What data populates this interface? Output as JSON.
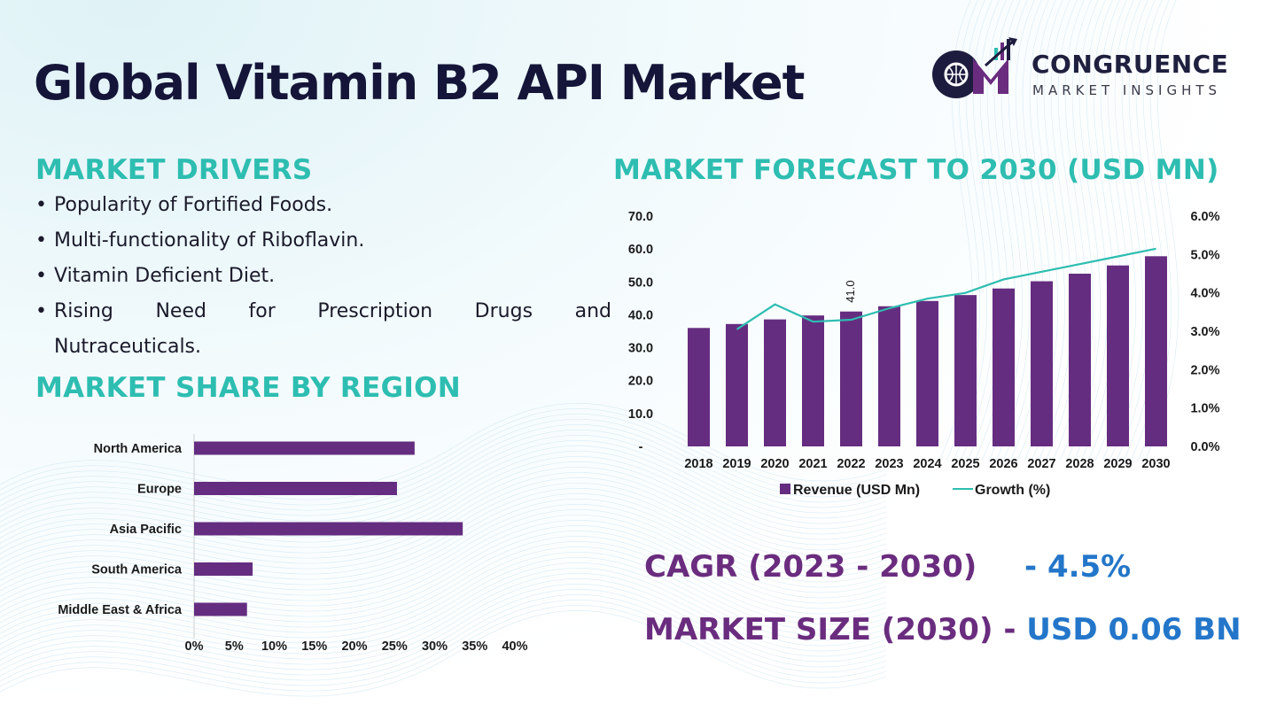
{
  "title": "Global Vitamin B2 API Market",
  "logo": {
    "line1": "CONGRUENCE",
    "line2": "MARKET INSIGHTS"
  },
  "drivers": {
    "heading": "MARKET DRIVERS",
    "items": [
      "Popularity of Fortified Foods.",
      "Multi-functionality of Riboflavin.",
      "Vitamin Deficient Diet.",
      "Rising Need for Prescription Drugs and",
      "Nutraceuticals."
    ]
  },
  "region": {
    "heading": "MARKET SHARE BY REGION"
  },
  "forecast": {
    "heading": "MARKET FORECAST TO 2030 (USD MN)"
  },
  "kpis": {
    "cagr_label": "CAGR (2023 - 2030)",
    "cagr_value": "- 4.5%",
    "size_label": "MARKET SIZE (2030) -",
    "size_value": "USD 0.06 BN"
  },
  "colors": {
    "purple": "#652d80",
    "teal": "#2ebdb1",
    "navy": "#141538",
    "blue": "#2376c9"
  },
  "chart_data": [
    {
      "type": "bar",
      "orientation": "horizontal",
      "title": "MARKET SHARE BY REGION",
      "categories": [
        "North America",
        "Europe",
        "Asia Pacific",
        "South America",
        "Middle East & Africa"
      ],
      "values": [
        27.5,
        25.3,
        33.5,
        7.3,
        6.6
      ],
      "xlim": [
        0,
        40
      ],
      "xticks": [
        "0%",
        "5%",
        "10%",
        "15%",
        "20%",
        "25%",
        "30%",
        "35%",
        "40%"
      ],
      "legend": "none"
    },
    {
      "type": "bar+line",
      "title": "MARKET FORECAST TO 2030 (USD MN)",
      "categories": [
        "2018",
        "2019",
        "2020",
        "2021",
        "2022",
        "2023",
        "2024",
        "2025",
        "2026",
        "2027",
        "2028",
        "2029",
        "2030"
      ],
      "series": [
        {
          "name": "Revenue (USD Mn)",
          "type": "bar",
          "axis": "left",
          "values": [
            36.0,
            37.2,
            38.6,
            39.8,
            41.0,
            42.6,
            44.2,
            46.0,
            48.0,
            50.2,
            52.5,
            55.0,
            57.8
          ]
        },
        {
          "name": "Growth (%)",
          "type": "line",
          "axis": "right",
          "values": [
            null,
            3.05,
            3.7,
            3.25,
            3.3,
            3.6,
            3.85,
            4.0,
            4.35,
            4.55,
            4.75,
            4.95,
            5.15
          ]
        }
      ],
      "data_labels": [
        {
          "category": "2022",
          "text": "41.0"
        }
      ],
      "yticks_left": [
        "-",
        "10.0",
        "20.0",
        "30.0",
        "40.0",
        "50.0",
        "60.0",
        "70.0"
      ],
      "ylim_left": [
        0,
        70
      ],
      "yticks_right": [
        "0.0%",
        "1.0%",
        "2.0%",
        "3.0%",
        "4.0%",
        "5.0%",
        "6.0%"
      ],
      "ylim_right": [
        0,
        6
      ],
      "legend": "bottom"
    }
  ]
}
